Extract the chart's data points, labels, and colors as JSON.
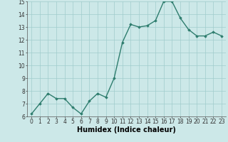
{
  "x": [
    0,
    1,
    2,
    3,
    4,
    5,
    6,
    7,
    8,
    9,
    10,
    11,
    12,
    13,
    14,
    15,
    16,
    17,
    18,
    19,
    20,
    21,
    22,
    23
  ],
  "y": [
    6.2,
    7.0,
    7.8,
    7.4,
    7.4,
    6.7,
    6.2,
    7.2,
    7.8,
    7.5,
    9.0,
    11.8,
    13.2,
    13.0,
    13.1,
    13.5,
    15.0,
    15.0,
    13.7,
    12.8,
    12.3,
    12.3,
    12.6,
    12.3
  ],
  "xlabel": "Humidex (Indice chaleur)",
  "ylim": [
    6,
    15
  ],
  "xlim": [
    -0.5,
    23.5
  ],
  "yticks": [
    6,
    7,
    8,
    9,
    10,
    11,
    12,
    13,
    14,
    15
  ],
  "xticks": [
    0,
    1,
    2,
    3,
    4,
    5,
    6,
    7,
    8,
    9,
    10,
    11,
    12,
    13,
    14,
    15,
    16,
    17,
    18,
    19,
    20,
    21,
    22,
    23
  ],
  "line_color": "#2e7d6e",
  "marker": "D",
  "marker_size": 1.8,
  "line_width": 1.0,
  "bg_color": "#cce8e8",
  "grid_color": "#a0cccc",
  "xlabel_fontsize": 7,
  "tick_fontsize": 5.5
}
